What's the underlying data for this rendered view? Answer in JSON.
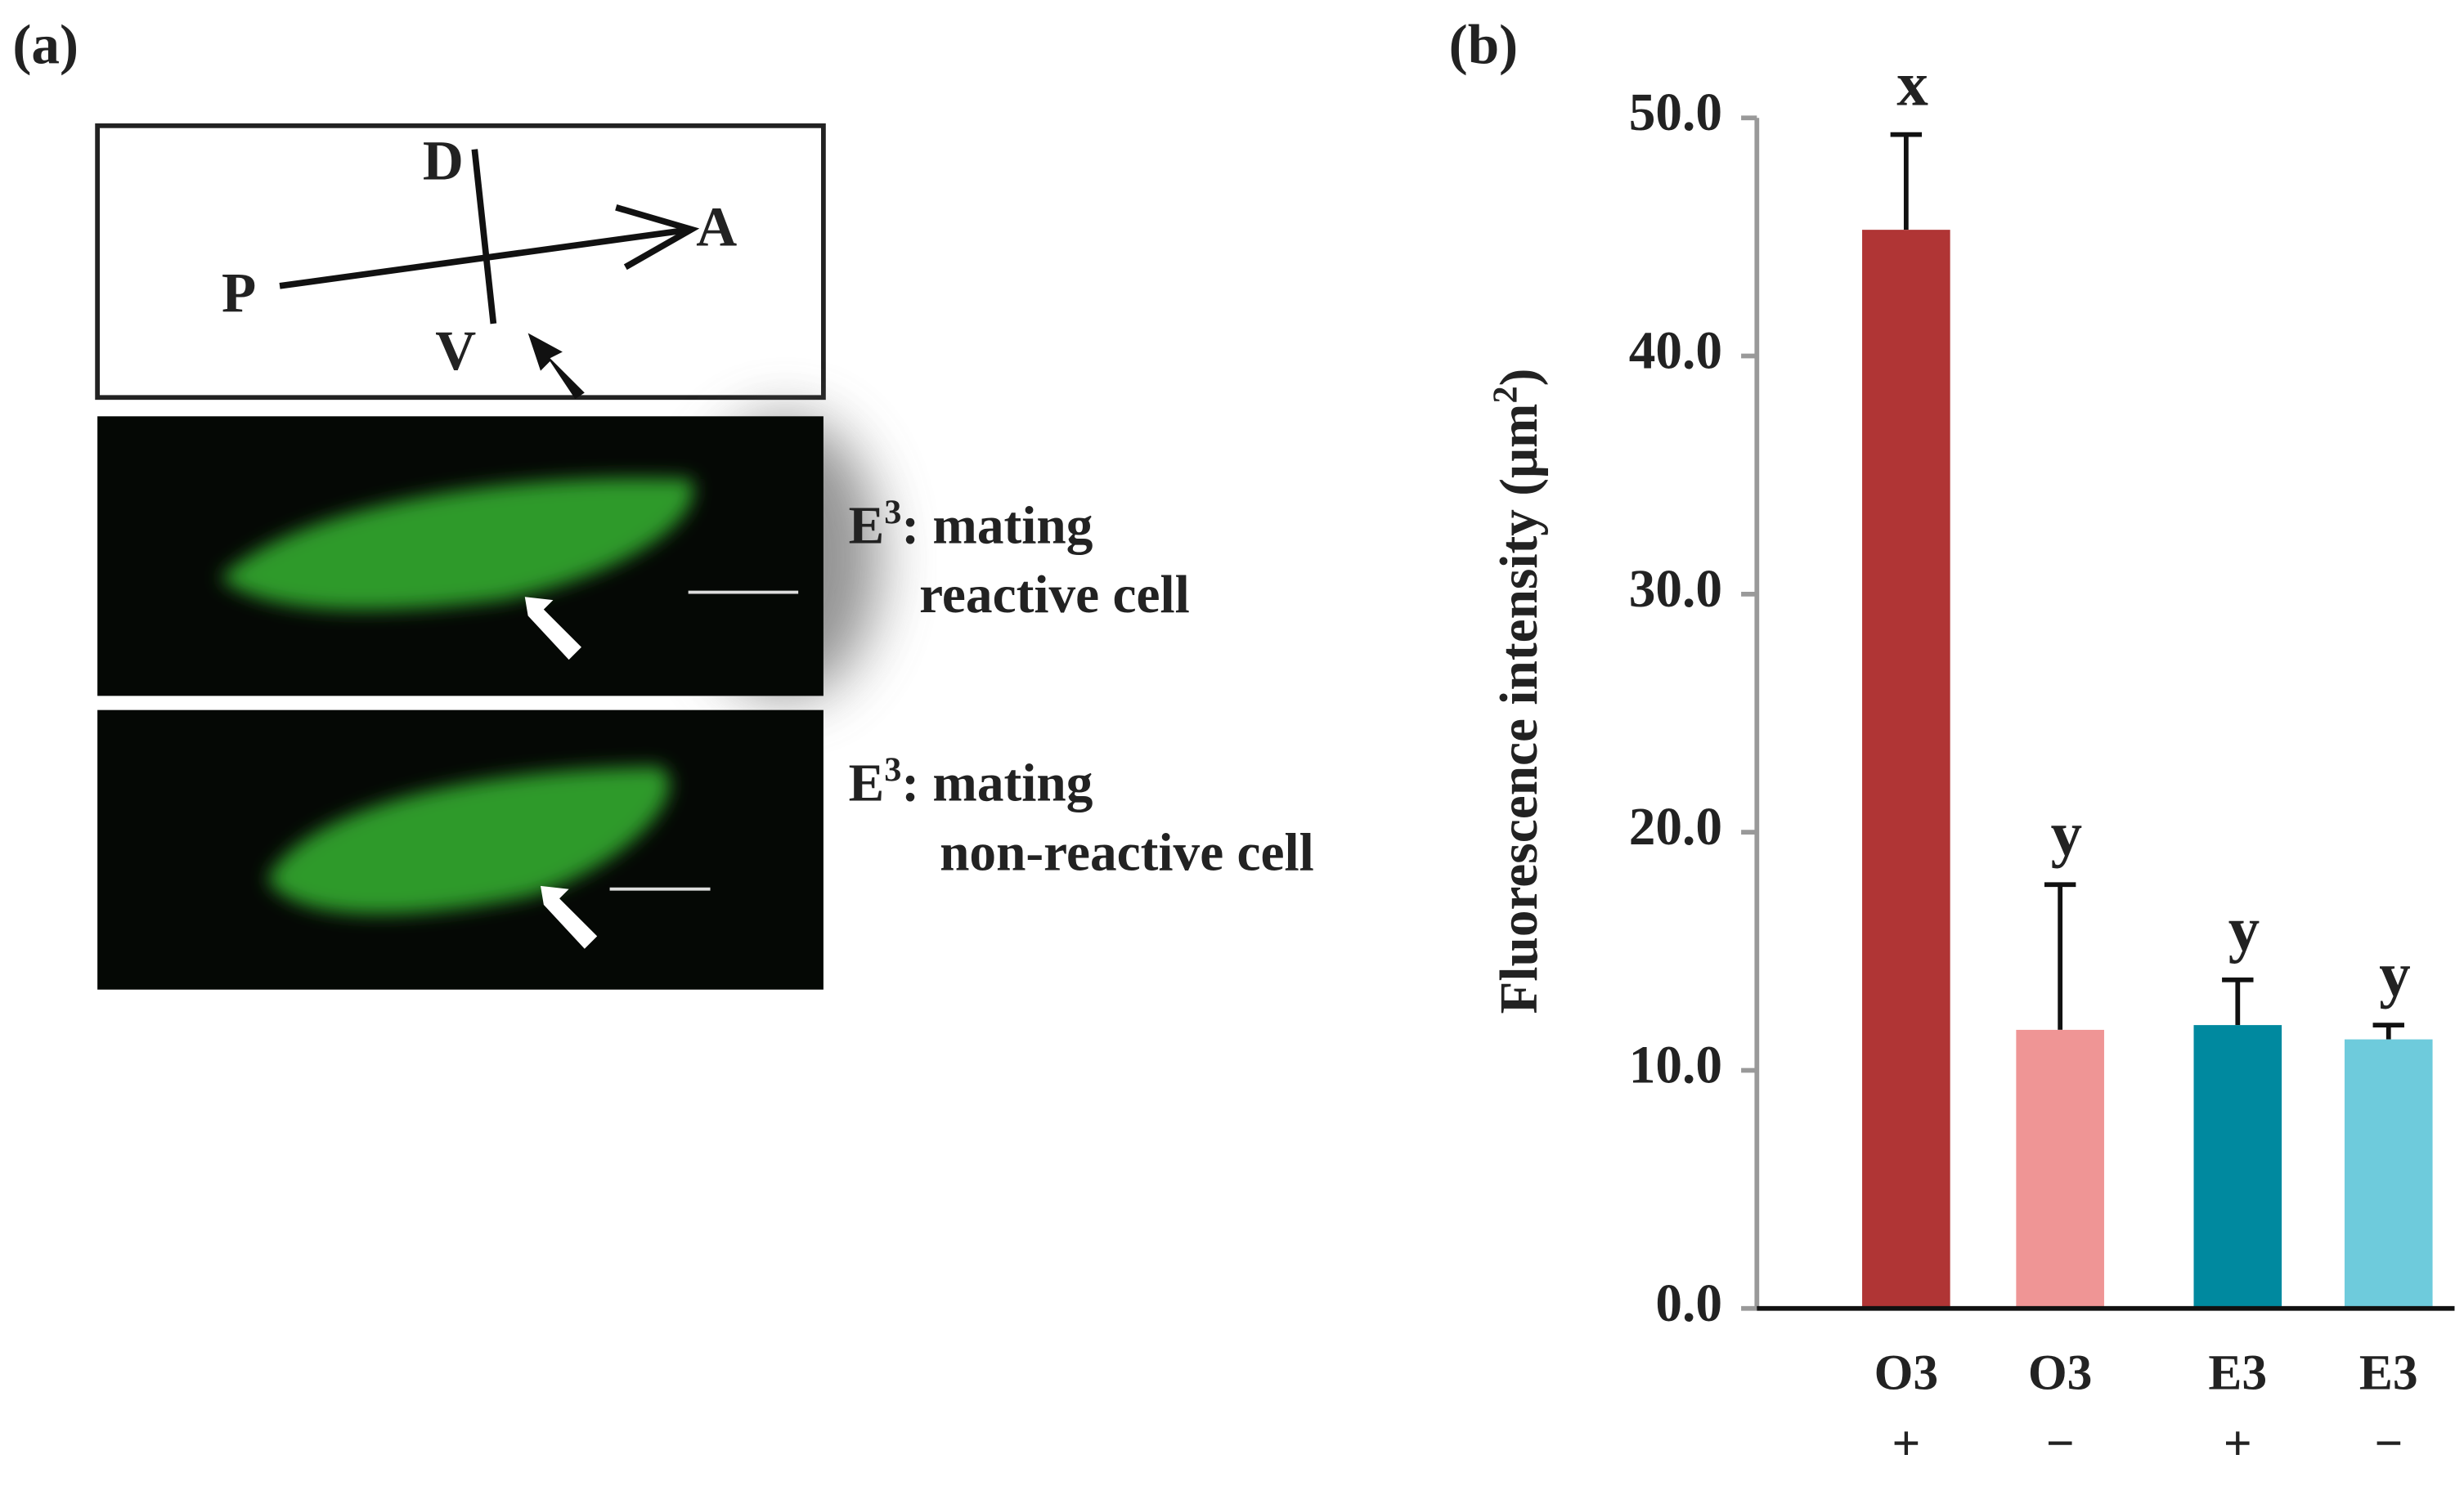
{
  "panel_a": {
    "label": "(a)",
    "directions": {
      "D": "D",
      "P": "P",
      "A": "A",
      "V": "V"
    },
    "cells": [
      {
        "base": "E",
        "sup": "3",
        "rest": ": mating",
        "line2": "reactive cell"
      },
      {
        "base": "E",
        "sup": "3",
        "rest": ": mating",
        "line2": "non-reactive cell"
      }
    ]
  },
  "chart_data": {
    "type": "bar",
    "panel_label": "(b)",
    "ylabel": "Fluorescence intensity (μm",
    "ylabel_sup": "2",
    "ylabel_end": ")",
    "categories": [
      "O3",
      "O3",
      "E3",
      "E3"
    ],
    "category_signs": [
      "+",
      "−",
      "+",
      "−"
    ],
    "values": [
      45.3,
      11.7,
      11.9,
      11.3
    ],
    "errors": [
      4.0,
      6.1,
      1.9,
      0.6
    ],
    "annotations": [
      "x",
      "y",
      "y",
      "y"
    ],
    "colors": [
      "#b03535",
      "#ef9595",
      "#00899f",
      "#6ecbdc"
    ],
    "ylim": [
      0,
      50
    ],
    "yticks": [
      {
        "value": 0,
        "label": "0.0"
      },
      {
        "value": 10,
        "label": "10.0"
      },
      {
        "value": 20,
        "label": "20.0"
      },
      {
        "value": 30,
        "label": "30.0"
      },
      {
        "value": 40,
        "label": "40.0"
      },
      {
        "value": 50,
        "label": "50.0"
      }
    ]
  }
}
